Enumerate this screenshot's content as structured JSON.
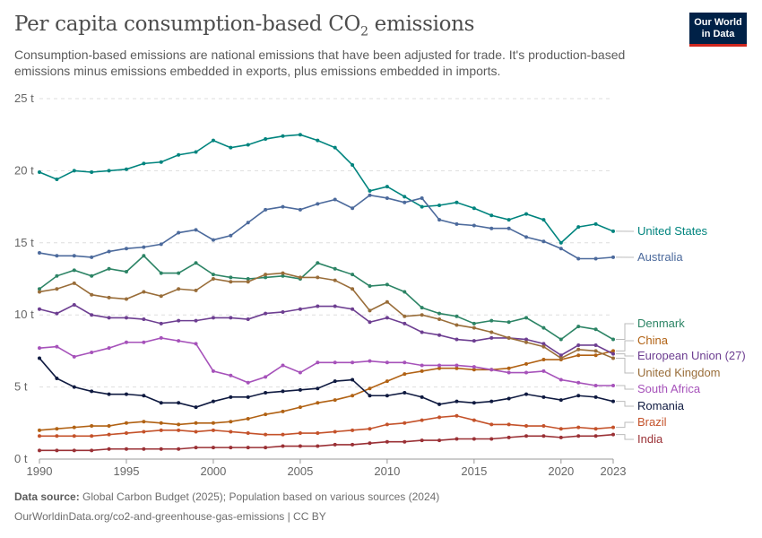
{
  "header": {
    "title": "Per capita consumption-based CO",
    "title_sub": "2",
    "title_tail": " emissions",
    "subtitle": "Consumption-based emissions are national emissions that have been adjusted for trade. It's production-based emissions minus emissions embedded in exports, plus emissions embedded in imports.",
    "logo_line1": "Our World",
    "logo_line2": "in Data"
  },
  "footer": {
    "source_label": "Data source:",
    "source_text": " Global Carbon Budget (2025); Population based on various sources (2024)",
    "url_line": "OurWorldinData.org/co2-and-greenhouse-gas-emissions | CC BY"
  },
  "chart_data": {
    "type": "line",
    "x": [
      1990,
      1991,
      1992,
      1993,
      1994,
      1995,
      1996,
      1997,
      1998,
      1999,
      2000,
      2001,
      2002,
      2003,
      2004,
      2005,
      2006,
      2007,
      2008,
      2009,
      2010,
      2011,
      2012,
      2013,
      2014,
      2015,
      2016,
      2017,
      2018,
      2019,
      2020,
      2021,
      2022,
      2023
    ],
    "x_ticks": [
      1990,
      1995,
      2000,
      2005,
      2010,
      2015,
      2020,
      2023
    ],
    "y_ticks": [
      0,
      5,
      10,
      15,
      20,
      25
    ],
    "y_tick_labels": [
      "0 t",
      "5 t",
      "10 t",
      "15 t",
      "20 t",
      "25 t"
    ],
    "xlim": [
      1990,
      2023
    ],
    "ylim": [
      0,
      25
    ],
    "grid": "horizontal dashed",
    "series": [
      {
        "name": "United States",
        "color": "#00847e",
        "values": [
          19.9,
          19.4,
          20.0,
          19.9,
          20.0,
          20.1,
          20.5,
          20.6,
          21.1,
          21.3,
          22.1,
          21.6,
          21.8,
          22.2,
          22.4,
          22.5,
          22.1,
          21.6,
          20.4,
          18.6,
          18.9,
          18.2,
          17.5,
          17.6,
          17.8,
          17.4,
          16.9,
          16.6,
          17.0,
          16.6,
          15.0,
          16.1,
          16.3,
          15.8
        ]
      },
      {
        "name": "Australia",
        "color": "#4c6a9c",
        "values": [
          14.3,
          14.1,
          14.1,
          14.0,
          14.4,
          14.6,
          14.7,
          14.9,
          15.7,
          15.9,
          15.2,
          15.5,
          16.4,
          17.3,
          17.5,
          17.3,
          17.7,
          18.0,
          17.4,
          18.3,
          18.1,
          17.8,
          18.1,
          16.6,
          16.3,
          16.2,
          16.0,
          16.0,
          15.4,
          15.1,
          14.6,
          13.9,
          13.9,
          14.0
        ]
      },
      {
        "name": "Denmark",
        "color": "#38aaba",
        "values": [
          11.8,
          12.7,
          13.1,
          12.7,
          13.2,
          13.0,
          14.1,
          12.9,
          12.9,
          13.6,
          12.8,
          12.6,
          12.5,
          12.6,
          12.7,
          12.5,
          13.6,
          13.2,
          12.8,
          12.0,
          12.1,
          11.6,
          10.5,
          10.1,
          9.9,
          9.4,
          9.6,
          9.5,
          9.8,
          9.1,
          8.3,
          9.2,
          9.0,
          8.3
        ]
      },
      {
        "name": "China",
        "color": "#a2559c",
        "values": [
          2.0,
          2.1,
          2.2,
          2.3,
          2.3,
          2.5,
          2.6,
          2.5,
          2.4,
          2.5,
          2.5,
          2.6,
          2.8,
          3.1,
          3.3,
          3.6,
          3.9,
          4.1,
          4.4,
          4.9,
          5.4,
          5.9,
          6.1,
          6.3,
          6.3,
          6.2,
          6.2,
          6.3,
          6.6,
          6.9,
          6.9,
          7.2,
          7.2,
          7.5
        ]
      },
      {
        "name": "European Union (27)",
        "color": "#6d3e91",
        "values": [
          10.4,
          10.1,
          10.7,
          10.0,
          9.8,
          9.8,
          9.7,
          9.4,
          9.6,
          9.6,
          9.8,
          9.8,
          9.7,
          10.1,
          10.2,
          10.4,
          10.6,
          10.6,
          10.4,
          9.5,
          9.8,
          9.4,
          8.8,
          8.6,
          8.3,
          8.2,
          8.4,
          8.4,
          8.3,
          8.0,
          7.2,
          7.9,
          7.9,
          7.3
        ]
      },
      {
        "name": "United Kingdom",
        "color": "#996d39",
        "values": [
          11.6,
          11.8,
          12.2,
          11.4,
          11.2,
          11.1,
          11.6,
          11.3,
          11.8,
          11.7,
          12.5,
          12.3,
          12.3,
          12.8,
          12.9,
          12.6,
          12.6,
          12.4,
          11.8,
          10.3,
          10.9,
          9.9,
          10.0,
          9.7,
          9.3,
          9.1,
          8.8,
          8.4,
          8.1,
          7.8,
          7.0,
          7.6,
          7.5,
          7.0
        ]
      },
      {
        "name": "South Africa",
        "color": "#be5915",
        "values": [
          7.7,
          7.8,
          7.1,
          7.4,
          7.7,
          8.1,
          8.1,
          8.4,
          8.2,
          8.0,
          6.1,
          5.8,
          5.3,
          5.7,
          6.5,
          6.0,
          6.7,
          6.7,
          6.7,
          6.8,
          6.7,
          6.7,
          6.5,
          6.5,
          6.5,
          6.4,
          6.2,
          6.0,
          6.0,
          6.1,
          5.5,
          5.3,
          5.1,
          5.1
        ]
      },
      {
        "name": "Romania",
        "color": "#0f3366",
        "values": [
          7.0,
          5.6,
          5.0,
          4.7,
          4.5,
          4.5,
          4.4,
          3.9,
          3.9,
          3.6,
          4.0,
          4.3,
          4.3,
          4.6,
          4.7,
          4.8,
          4.9,
          5.4,
          5.5,
          4.4,
          4.4,
          4.6,
          4.3,
          3.8,
          4.0,
          3.9,
          4.0,
          4.2,
          4.5,
          4.3,
          4.1,
          4.4,
          4.3,
          4.0
        ]
      },
      {
        "name": "Brazil",
        "color": "#b13507",
        "values": [
          1.6,
          1.6,
          1.6,
          1.6,
          1.7,
          1.8,
          1.9,
          2.0,
          2.0,
          1.9,
          2.0,
          1.9,
          1.8,
          1.7,
          1.7,
          1.8,
          1.8,
          1.9,
          2.0,
          2.1,
          2.4,
          2.5,
          2.7,
          2.9,
          3.0,
          2.7,
          2.4,
          2.4,
          2.3,
          2.3,
          2.1,
          2.2,
          2.1,
          2.2
        ]
      },
      {
        "name": "India",
        "color": "#8c4569",
        "values": [
          0.6,
          0.6,
          0.6,
          0.6,
          0.7,
          0.7,
          0.7,
          0.7,
          0.7,
          0.8,
          0.8,
          0.8,
          0.8,
          0.8,
          0.9,
          0.9,
          0.9,
          1.0,
          1.0,
          1.1,
          1.2,
          1.2,
          1.3,
          1.3,
          1.4,
          1.4,
          1.4,
          1.5,
          1.6,
          1.6,
          1.5,
          1.6,
          1.6,
          1.7
        ]
      }
    ],
    "colors_override": {
      "Denmark": "#2c8465",
      "China": "#b16214",
      "South Africa": "#a652ba",
      "Romania": "#0f1a40",
      "Brazil": "#c4522a",
      "India": "#9a3035"
    }
  }
}
